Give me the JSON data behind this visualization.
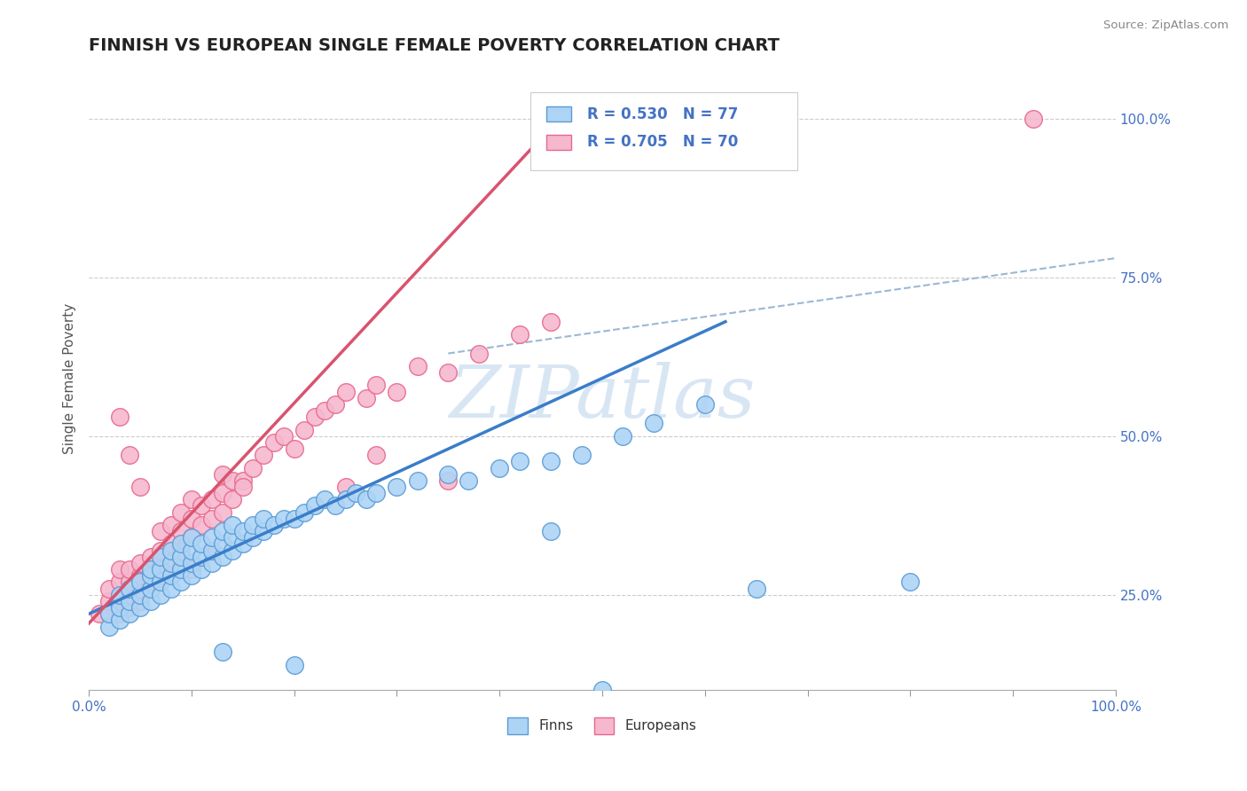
{
  "title": "FINNISH VS EUROPEAN SINGLE FEMALE POVERTY CORRELATION CHART",
  "source": "Source: ZipAtlas.com",
  "ylabel": "Single Female Poverty",
  "y_tick_labels": [
    "25.0%",
    "50.0%",
    "75.0%",
    "100.0%"
  ],
  "finns_R": "0.530",
  "finns_N": "77",
  "europeans_R": "0.705",
  "europeans_N": "70",
  "finns_color": "#ADD4F5",
  "europeans_color": "#F5B8CF",
  "finns_edge_color": "#5B9BD5",
  "europeans_edge_color": "#E8688A",
  "finns_line_color": "#3A7DC9",
  "europeans_line_color": "#D9536E",
  "diagonal_color": "#9BB8D4",
  "watermark_color": "#C8DCF0",
  "finns_scatter": [
    [
      0.02,
      0.2
    ],
    [
      0.02,
      0.22
    ],
    [
      0.03,
      0.21
    ],
    [
      0.03,
      0.23
    ],
    [
      0.03,
      0.25
    ],
    [
      0.04,
      0.22
    ],
    [
      0.04,
      0.24
    ],
    [
      0.04,
      0.26
    ],
    [
      0.05,
      0.23
    ],
    [
      0.05,
      0.25
    ],
    [
      0.05,
      0.27
    ],
    [
      0.06,
      0.24
    ],
    [
      0.06,
      0.26
    ],
    [
      0.06,
      0.28
    ],
    [
      0.06,
      0.29
    ],
    [
      0.07,
      0.25
    ],
    [
      0.07,
      0.27
    ],
    [
      0.07,
      0.29
    ],
    [
      0.07,
      0.31
    ],
    [
      0.08,
      0.26
    ],
    [
      0.08,
      0.28
    ],
    [
      0.08,
      0.3
    ],
    [
      0.08,
      0.32
    ],
    [
      0.09,
      0.27
    ],
    [
      0.09,
      0.29
    ],
    [
      0.09,
      0.31
    ],
    [
      0.09,
      0.33
    ],
    [
      0.1,
      0.28
    ],
    [
      0.1,
      0.3
    ],
    [
      0.1,
      0.32
    ],
    [
      0.1,
      0.34
    ],
    [
      0.11,
      0.29
    ],
    [
      0.11,
      0.31
    ],
    [
      0.11,
      0.33
    ],
    [
      0.12,
      0.3
    ],
    [
      0.12,
      0.32
    ],
    [
      0.12,
      0.34
    ],
    [
      0.13,
      0.31
    ],
    [
      0.13,
      0.33
    ],
    [
      0.13,
      0.35
    ],
    [
      0.14,
      0.32
    ],
    [
      0.14,
      0.34
    ],
    [
      0.14,
      0.36
    ],
    [
      0.15,
      0.33
    ],
    [
      0.15,
      0.35
    ],
    [
      0.16,
      0.34
    ],
    [
      0.16,
      0.36
    ],
    [
      0.17,
      0.35
    ],
    [
      0.17,
      0.37
    ],
    [
      0.18,
      0.36
    ],
    [
      0.19,
      0.37
    ],
    [
      0.2,
      0.37
    ],
    [
      0.21,
      0.38
    ],
    [
      0.22,
      0.39
    ],
    [
      0.23,
      0.4
    ],
    [
      0.24,
      0.39
    ],
    [
      0.25,
      0.4
    ],
    [
      0.26,
      0.41
    ],
    [
      0.27,
      0.4
    ],
    [
      0.28,
      0.41
    ],
    [
      0.3,
      0.42
    ],
    [
      0.32,
      0.43
    ],
    [
      0.35,
      0.44
    ],
    [
      0.37,
      0.43
    ],
    [
      0.4,
      0.45
    ],
    [
      0.42,
      0.46
    ],
    [
      0.45,
      0.46
    ],
    [
      0.48,
      0.47
    ],
    [
      0.52,
      0.5
    ],
    [
      0.55,
      0.52
    ],
    [
      0.6,
      0.55
    ],
    [
      0.2,
      0.14
    ],
    [
      0.13,
      0.16
    ],
    [
      0.5,
      0.1
    ],
    [
      0.45,
      0.35
    ],
    [
      0.65,
      0.26
    ],
    [
      0.8,
      0.27
    ]
  ],
  "europeans_scatter": [
    [
      0.01,
      0.22
    ],
    [
      0.02,
      0.22
    ],
    [
      0.02,
      0.24
    ],
    [
      0.02,
      0.26
    ],
    [
      0.03,
      0.22
    ],
    [
      0.03,
      0.24
    ],
    [
      0.03,
      0.27
    ],
    [
      0.03,
      0.29
    ],
    [
      0.04,
      0.23
    ],
    [
      0.04,
      0.25
    ],
    [
      0.04,
      0.27
    ],
    [
      0.04,
      0.29
    ],
    [
      0.05,
      0.24
    ],
    [
      0.05,
      0.26
    ],
    [
      0.05,
      0.28
    ],
    [
      0.05,
      0.3
    ],
    [
      0.06,
      0.27
    ],
    [
      0.06,
      0.29
    ],
    [
      0.06,
      0.31
    ],
    [
      0.07,
      0.28
    ],
    [
      0.07,
      0.3
    ],
    [
      0.07,
      0.32
    ],
    [
      0.07,
      0.35
    ],
    [
      0.08,
      0.3
    ],
    [
      0.08,
      0.33
    ],
    [
      0.08,
      0.36
    ],
    [
      0.09,
      0.32
    ],
    [
      0.09,
      0.35
    ],
    [
      0.09,
      0.38
    ],
    [
      0.1,
      0.34
    ],
    [
      0.1,
      0.37
    ],
    [
      0.1,
      0.4
    ],
    [
      0.11,
      0.36
    ],
    [
      0.11,
      0.39
    ],
    [
      0.12,
      0.37
    ],
    [
      0.12,
      0.4
    ],
    [
      0.13,
      0.38
    ],
    [
      0.13,
      0.41
    ],
    [
      0.13,
      0.44
    ],
    [
      0.14,
      0.4
    ],
    [
      0.14,
      0.43
    ],
    [
      0.15,
      0.43
    ],
    [
      0.16,
      0.45
    ],
    [
      0.17,
      0.47
    ],
    [
      0.18,
      0.49
    ],
    [
      0.19,
      0.5
    ],
    [
      0.2,
      0.48
    ],
    [
      0.21,
      0.51
    ],
    [
      0.22,
      0.53
    ],
    [
      0.23,
      0.54
    ],
    [
      0.24,
      0.55
    ],
    [
      0.25,
      0.57
    ],
    [
      0.27,
      0.56
    ],
    [
      0.28,
      0.58
    ],
    [
      0.3,
      0.57
    ],
    [
      0.32,
      0.61
    ],
    [
      0.35,
      0.6
    ],
    [
      0.38,
      0.63
    ],
    [
      0.42,
      0.66
    ],
    [
      0.45,
      0.68
    ],
    [
      0.04,
      0.47
    ],
    [
      0.03,
      0.53
    ],
    [
      0.05,
      0.42
    ],
    [
      0.1,
      0.29
    ],
    [
      0.12,
      0.32
    ],
    [
      0.15,
      0.42
    ],
    [
      0.25,
      0.42
    ],
    [
      0.28,
      0.47
    ],
    [
      0.35,
      0.43
    ],
    [
      0.92,
      1.0
    ]
  ],
  "xlim": [
    0.0,
    1.0
  ],
  "ylim": [
    0.1,
    1.08
  ],
  "finns_line": [
    [
      0.0,
      0.22
    ],
    [
      0.62,
      0.68
    ]
  ],
  "europeans_line": [
    [
      0.0,
      0.205
    ],
    [
      0.47,
      1.02
    ]
  ],
  "diagonal_line": [
    [
      0.35,
      0.63
    ],
    [
      1.0,
      0.78
    ]
  ],
  "finns_line_solid_end": 0.62,
  "europeans_line_solid_end": 0.47
}
